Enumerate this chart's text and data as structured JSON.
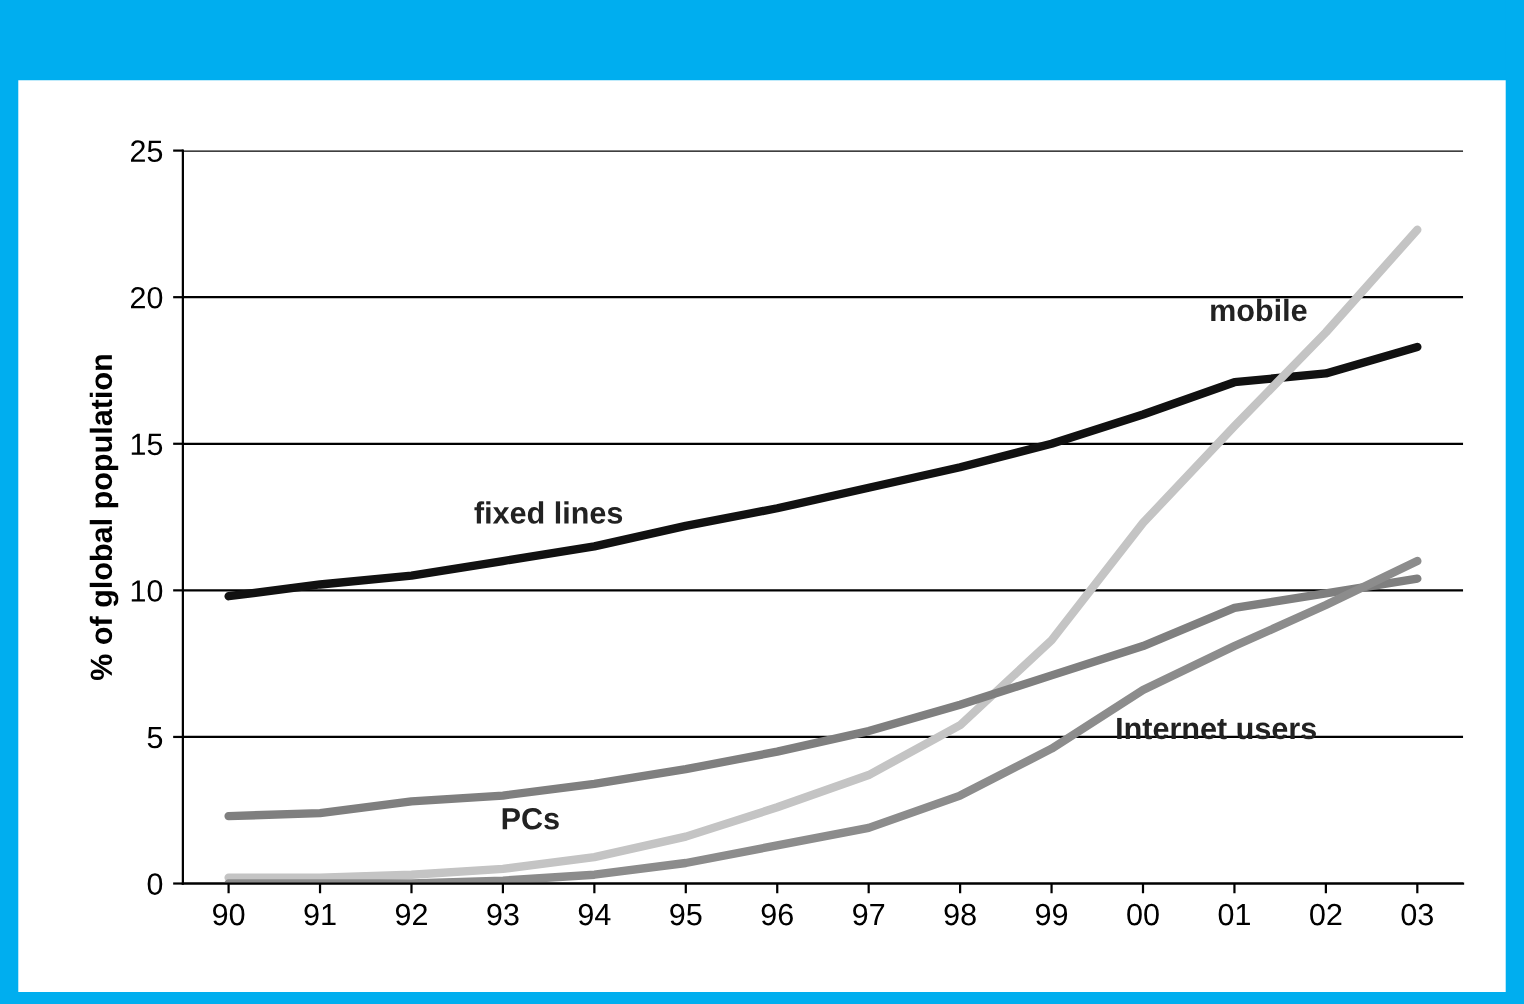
{
  "chart_data": {
    "type": "line",
    "ylabel": "% of global population",
    "categories": [
      "90",
      "91",
      "92",
      "93",
      "94",
      "95",
      "96",
      "97",
      "98",
      "99",
      "00",
      "01",
      "02",
      "03"
    ],
    "series": [
      {
        "name": "fixed lines",
        "color": "#111111",
        "values": [
          9.8,
          10.2,
          10.5,
          11.0,
          11.5,
          12.2,
          12.8,
          13.5,
          14.2,
          15.0,
          16.0,
          17.1,
          17.4,
          18.3
        ]
      },
      {
        "name": "mobile",
        "color": "#c4c4c4",
        "values": [
          0.2,
          0.2,
          0.3,
          0.5,
          0.9,
          1.6,
          2.6,
          3.7,
          5.4,
          8.3,
          12.3,
          15.6,
          18.8,
          22.3
        ]
      },
      {
        "name": "PCs",
        "color": "#7f7f7f",
        "values": [
          2.3,
          2.4,
          2.8,
          3.0,
          3.4,
          3.9,
          4.5,
          5.2,
          6.1,
          7.1,
          8.1,
          9.4,
          9.9,
          10.4
        ]
      },
      {
        "name": "Internet users",
        "color": "#8c8c8c",
        "values": [
          0.0,
          0.0,
          0.0,
          0.1,
          0.3,
          0.7,
          1.3,
          1.9,
          3.0,
          4.6,
          6.6,
          8.1,
          9.5,
          11.0
        ]
      }
    ],
    "ylim": [
      0,
      25
    ],
    "yticks": [
      0,
      5,
      10,
      15,
      20,
      25
    ],
    "grid": "y",
    "legend": false,
    "marker": "none",
    "line_style": "solid"
  }
}
